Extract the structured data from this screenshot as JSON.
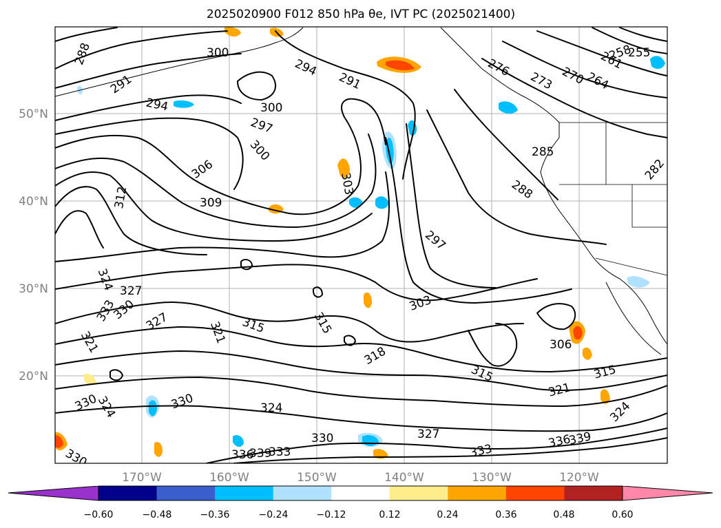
{
  "title": "2025020900 F012 850 hPa θe, IVT PC (2025021400)",
  "map": {
    "lat_ticks": [
      "50°N",
      "40°N",
      "30°N",
      "20°N"
    ],
    "lon_ticks": [
      "170°W",
      "160°W",
      "150°W",
      "140°W",
      "130°W",
      "120°W"
    ]
  },
  "colorbar": {
    "colors": [
      "#9932cc",
      "#00008b",
      "#3a5fcd",
      "#00bfff",
      "#b0e2ff",
      "#ffffff",
      "#ffec8b",
      "#ffa500",
      "#ff4500",
      "#b22222",
      "#ff88aa"
    ],
    "tick_labels": [
      "−0.60",
      "−0.48",
      "−0.36",
      "−0.24",
      "−0.12",
      "0.12",
      "0.24",
      "0.36",
      "0.48",
      "0.60"
    ]
  },
  "contour_labels": [
    {
      "t": "288"
    },
    {
      "t": "291"
    },
    {
      "t": "294"
    },
    {
      "t": "300"
    },
    {
      "t": "300"
    },
    {
      "t": "297"
    },
    {
      "t": "294"
    },
    {
      "t": "291"
    },
    {
      "t": "300"
    },
    {
      "t": "306"
    },
    {
      "t": "309"
    },
    {
      "t": "312"
    },
    {
      "t": "303"
    },
    {
      "t": "276"
    },
    {
      "t": "273"
    },
    {
      "t": "270"
    },
    {
      "t": "261"
    },
    {
      "t": "258"
    },
    {
      "t": "255"
    },
    {
      "t": "264"
    },
    {
      "t": "285"
    },
    {
      "t": "288"
    },
    {
      "t": "282"
    },
    {
      "t": "297"
    },
    {
      "t": "324"
    },
    {
      "t": "327"
    },
    {
      "t": "333"
    },
    {
      "t": "330"
    },
    {
      "t": "327"
    },
    {
      "t": "321"
    },
    {
      "t": "321"
    },
    {
      "t": "315"
    },
    {
      "t": "315"
    },
    {
      "t": "318"
    },
    {
      "t": "303"
    },
    {
      "t": "315"
    },
    {
      "t": "306"
    },
    {
      "t": "321"
    },
    {
      "t": "315"
    },
    {
      "t": "324"
    },
    {
      "t": "330"
    },
    {
      "t": "324"
    },
    {
      "t": "330"
    },
    {
      "t": "324"
    },
    {
      "t": "330"
    },
    {
      "t": "327"
    },
    {
      "t": "333"
    },
    {
      "t": "336"
    },
    {
      "t": "339"
    },
    {
      "t": "333"
    },
    {
      "t": "336"
    },
    {
      "t": "339"
    },
    {
      "t": "330"
    }
  ]
}
